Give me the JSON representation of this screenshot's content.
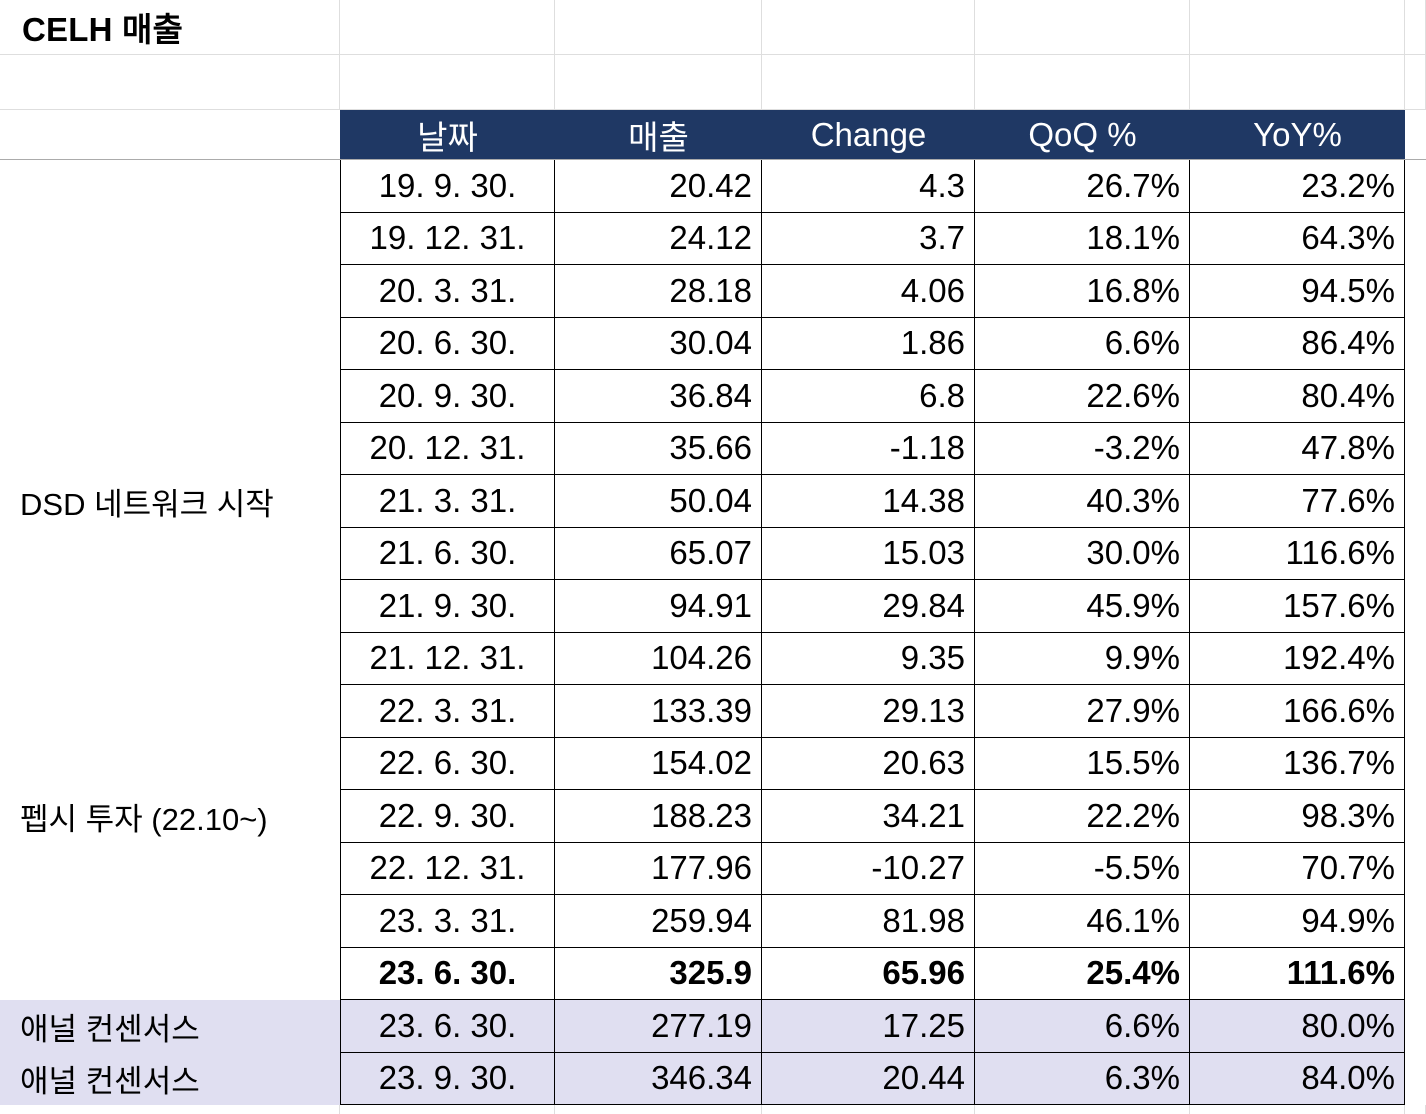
{
  "title": "CELH 매출",
  "table": {
    "headers": [
      "날짜",
      "매출",
      "Change",
      "QoQ %",
      "YoY%"
    ],
    "rows": [
      {
        "label": "",
        "date": "19. 9. 30.",
        "revenue": "20.42",
        "change": "4.3",
        "qoq": "26.7%",
        "yoy": "23.2%",
        "bold": false,
        "highlight": false
      },
      {
        "label": "",
        "date": "19. 12. 31.",
        "revenue": "24.12",
        "change": "3.7",
        "qoq": "18.1%",
        "yoy": "64.3%",
        "bold": false,
        "highlight": false
      },
      {
        "label": "",
        "date": "20. 3. 31.",
        "revenue": "28.18",
        "change": "4.06",
        "qoq": "16.8%",
        "yoy": "94.5%",
        "bold": false,
        "highlight": false
      },
      {
        "label": "",
        "date": "20. 6. 30.",
        "revenue": "30.04",
        "change": "1.86",
        "qoq": "6.6%",
        "yoy": "86.4%",
        "bold": false,
        "highlight": false
      },
      {
        "label": "",
        "date": "20. 9. 30.",
        "revenue": "36.84",
        "change": "6.8",
        "qoq": "22.6%",
        "yoy": "80.4%",
        "bold": false,
        "highlight": false
      },
      {
        "label": "",
        "date": "20. 12. 31.",
        "revenue": "35.66",
        "change": "-1.18",
        "qoq": "-3.2%",
        "yoy": "47.8%",
        "bold": false,
        "highlight": false
      },
      {
        "label": "DSD 네트워크 시작",
        "date": "21. 3. 31.",
        "revenue": "50.04",
        "change": "14.38",
        "qoq": "40.3%",
        "yoy": "77.6%",
        "bold": false,
        "highlight": false
      },
      {
        "label": "",
        "date": "21. 6. 30.",
        "revenue": "65.07",
        "change": "15.03",
        "qoq": "30.0%",
        "yoy": "116.6%",
        "bold": false,
        "highlight": false
      },
      {
        "label": "",
        "date": "21. 9. 30.",
        "revenue": "94.91",
        "change": "29.84",
        "qoq": "45.9%",
        "yoy": "157.6%",
        "bold": false,
        "highlight": false
      },
      {
        "label": "",
        "date": "21. 12. 31.",
        "revenue": "104.26",
        "change": "9.35",
        "qoq": "9.9%",
        "yoy": "192.4%",
        "bold": false,
        "highlight": false
      },
      {
        "label": "",
        "date": "22. 3. 31.",
        "revenue": "133.39",
        "change": "29.13",
        "qoq": "27.9%",
        "yoy": "166.6%",
        "bold": false,
        "highlight": false
      },
      {
        "label": "",
        "date": "22. 6. 30.",
        "revenue": "154.02",
        "change": "20.63",
        "qoq": "15.5%",
        "yoy": "136.7%",
        "bold": false,
        "highlight": false
      },
      {
        "label": "펩시 투자 (22.10~)",
        "date": "22. 9. 30.",
        "revenue": "188.23",
        "change": "34.21",
        "qoq": "22.2%",
        "yoy": "98.3%",
        "bold": false,
        "highlight": false
      },
      {
        "label": "",
        "date": "22. 12. 31.",
        "revenue": "177.96",
        "change": "-10.27",
        "qoq": "-5.5%",
        "yoy": "70.7%",
        "bold": false,
        "highlight": false
      },
      {
        "label": "",
        "date": "23. 3. 31.",
        "revenue": "259.94",
        "change": "81.98",
        "qoq": "46.1%",
        "yoy": "94.9%",
        "bold": false,
        "highlight": false
      },
      {
        "label": "",
        "date": "23. 6. 30.",
        "revenue": "325.9",
        "change": "65.96",
        "qoq": "25.4%",
        "yoy": "111.6%",
        "bold": true,
        "highlight": false
      },
      {
        "label": "애널 컨센서스",
        "date": "23. 6. 30.",
        "revenue": "277.19",
        "change": "17.25",
        "qoq": "6.6%",
        "yoy": "80.0%",
        "bold": false,
        "highlight": true
      },
      {
        "label": "애널 컨센서스",
        "date": "23. 9. 30.",
        "revenue": "346.34",
        "change": "20.44",
        "qoq": "6.3%",
        "yoy": "84.0%",
        "bold": false,
        "highlight": true
      }
    ]
  },
  "colors": {
    "header_bg": "#1f3864",
    "header_text": "#ffffff",
    "highlight_bg": "#e0dff1",
    "cell_border": "#000000"
  }
}
